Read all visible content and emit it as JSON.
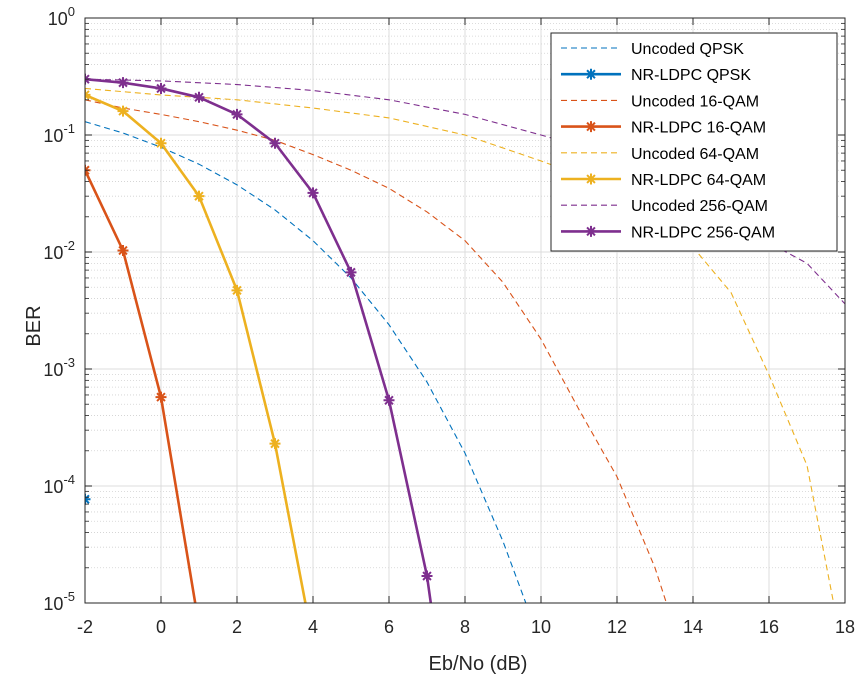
{
  "chart_data": {
    "type": "line",
    "xlabel": "Eb/No (dB)",
    "ylabel": "BER",
    "xlim": [
      -2,
      18
    ],
    "ylim": [
      1e-05,
      1
    ],
    "yscale": "log",
    "grid": true,
    "legend_position": "top-right",
    "x_ticks": [
      "-2",
      "0",
      "2",
      "4",
      "6",
      "8",
      "10",
      "12",
      "14",
      "16",
      "18"
    ],
    "y_ticks": [
      {
        "base": "10",
        "exp": "0"
      },
      {
        "base": "10",
        "exp": "-1"
      },
      {
        "base": "10",
        "exp": "-2"
      },
      {
        "base": "10",
        "exp": "-3"
      },
      {
        "base": "10",
        "exp": "-4"
      },
      {
        "base": "10",
        "exp": "-5"
      }
    ],
    "series": [
      {
        "name": "Uncoded QPSK",
        "style": "dashed",
        "color": "#0072BD",
        "x": [
          -2,
          -1,
          0,
          1,
          2,
          3,
          4,
          5,
          6,
          7,
          8,
          9,
          9.6
        ],
        "y": [
          0.13,
          0.104,
          0.0786,
          0.0563,
          0.0375,
          0.0229,
          0.0125,
          0.006,
          0.00239,
          0.000773,
          0.000191,
          3.36e-05,
          1e-05
        ]
      },
      {
        "name": "NR-LDPC QPSK",
        "style": "solid-marker",
        "color": "#0072BD",
        "x": [
          -2
        ],
        "y": [
          7.7e-05
        ]
      },
      {
        "name": "Uncoded 16-QAM",
        "style": "dashed",
        "color": "#D95319",
        "x": [
          -2,
          -1,
          0,
          1,
          2,
          3,
          4,
          5,
          6,
          7,
          8,
          9,
          10,
          11,
          12,
          13,
          13.3
        ],
        "y": [
          0.2,
          0.17,
          0.15,
          0.13,
          0.11,
          0.09,
          0.068,
          0.05,
          0.035,
          0.022,
          0.0125,
          0.0055,
          0.0018,
          0.00045,
          0.00012,
          2e-05,
          1e-05
        ]
      },
      {
        "name": "NR-LDPC 16-QAM",
        "style": "solid-marker",
        "color": "#D95319",
        "x": [
          -2,
          -1,
          0,
          0.9
        ],
        "y": [
          0.05,
          0.0103,
          0.000575,
          1e-05
        ]
      },
      {
        "name": "Uncoded 64-QAM",
        "style": "dashed",
        "color": "#EDB120",
        "x": [
          -2,
          0,
          2,
          4,
          6,
          8,
          10,
          12,
          13,
          14,
          15,
          16,
          17,
          17.7
        ],
        "y": [
          0.25,
          0.22,
          0.2,
          0.17,
          0.14,
          0.1,
          0.06,
          0.035,
          0.022,
          0.011,
          0.0045,
          0.00089,
          0.00015,
          1e-05
        ]
      },
      {
        "name": "NR-LDPC 64-QAM",
        "style": "solid-marker",
        "color": "#EDB120",
        "x": [
          -2,
          -1,
          0,
          1,
          2,
          3,
          3.8
        ],
        "y": [
          0.22,
          0.16,
          0.085,
          0.03,
          0.0047,
          0.00023,
          1e-05
        ]
      },
      {
        "name": "Uncoded 256-QAM",
        "style": "dashed",
        "color": "#7E2F8E",
        "x": [
          -2,
          0,
          2,
          4,
          6,
          8,
          10,
          12,
          14,
          16,
          17,
          18
        ],
        "y": [
          0.3,
          0.29,
          0.27,
          0.24,
          0.2,
          0.15,
          0.1,
          0.065,
          0.035,
          0.012,
          0.008,
          0.0036
        ]
      },
      {
        "name": "NR-LDPC 256-QAM",
        "style": "solid-marker",
        "color": "#7E2F8E",
        "x": [
          -2,
          -1,
          0,
          1,
          2,
          3,
          4,
          5,
          6,
          7,
          7.1
        ],
        "y": [
          0.3,
          0.28,
          0.25,
          0.21,
          0.15,
          0.085,
          0.032,
          0.0067,
          0.00054,
          1.7e-05,
          1e-05
        ],
        "marker_count": 10
      }
    ]
  }
}
